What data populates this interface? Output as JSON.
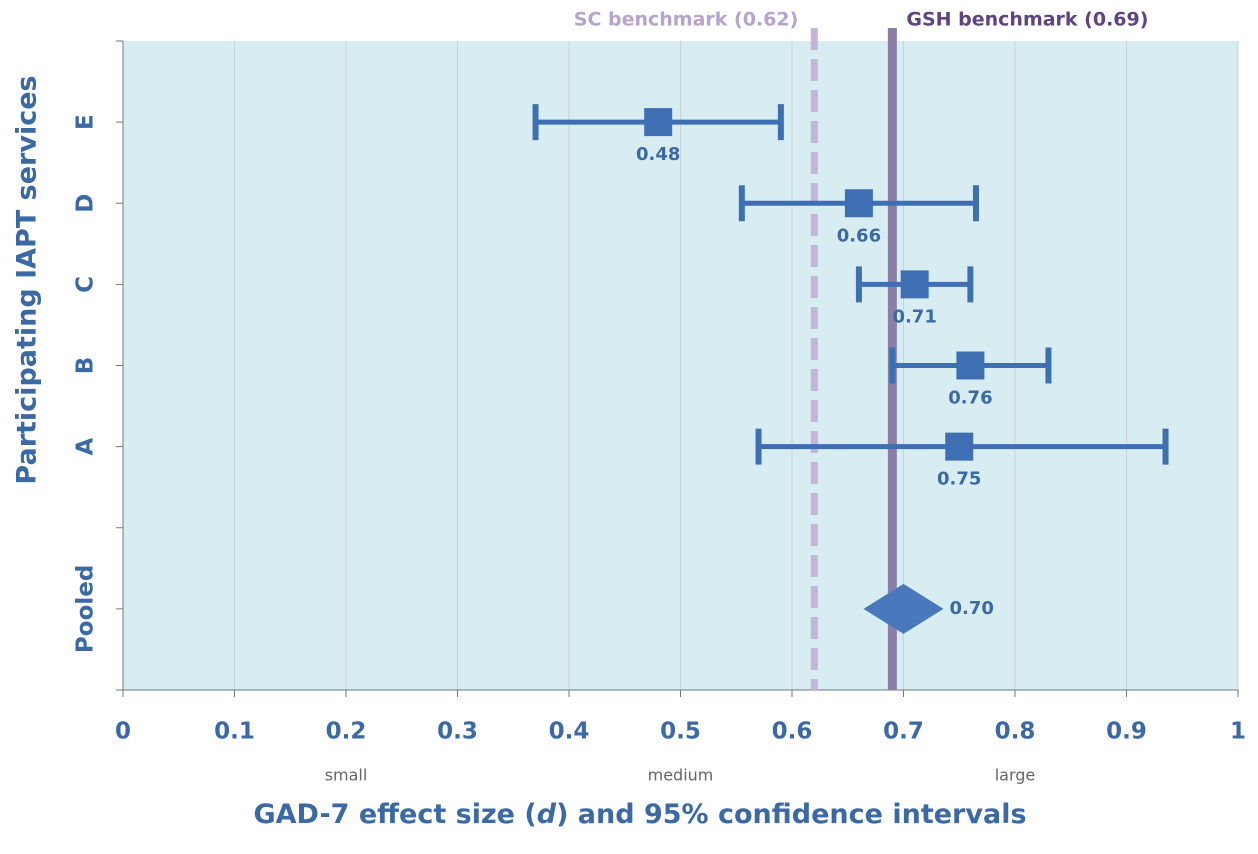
{
  "chart_data": {
    "type": "forest",
    "xlabel": [
      "GAD-7 effect size (",
      "d",
      ") and 95% confidence intervals"
    ],
    "ylabel": "Participating IAPT services",
    "categories": [
      null,
      "E",
      "D",
      "C",
      "B",
      "A",
      null,
      "Pooled",
      null
    ],
    "values": [
      null,
      0.48,
      0.66,
      0.71,
      0.76,
      0.75,
      null,
      0.7,
      null
    ],
    "value_labels": [
      null,
      "0.48",
      "0.66",
      "0.71",
      "0.76",
      "0.75",
      null,
      "0.70",
      null
    ],
    "lower": [
      null,
      0.37,
      0.555,
      0.66,
      0.69,
      0.57,
      null,
      null,
      null
    ],
    "upper": [
      null,
      0.59,
      0.765,
      0.76,
      0.83,
      0.935,
      null,
      null,
      null
    ],
    "color": "#3f6fb3",
    "xlim": [
      0,
      1
    ],
    "xticks": [
      0,
      0.1,
      0.2,
      0.3,
      0.4,
      0.5,
      0.6,
      0.7,
      0.8,
      0.9,
      1
    ],
    "grid": true,
    "reference_lines": [
      {
        "label": "SC benchmark (0.62)",
        "value": 0.62,
        "color": "#c4b4da",
        "label_color": "#b6a3d0",
        "dashed": true
      },
      {
        "label": "GSH benchmark (0.69)",
        "value": 0.69,
        "color": "#8c7fa6",
        "label_color": "#5e4483",
        "dashed": false
      }
    ],
    "annotations": [
      {
        "text": "small",
        "x": 0.2
      },
      {
        "text": "medium",
        "x": 0.5
      },
      {
        "text": "large",
        "x": 0.8
      }
    ]
  }
}
